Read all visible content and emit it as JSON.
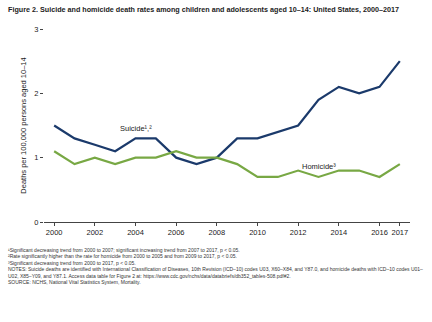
{
  "chart_data": {
    "type": "line",
    "title": "Figure 2. Suicide and homicide death rates among children and adolescents aged 10–14: United States, 2000–2017",
    "y_label": "Deaths per 100,000 persons aged 10–14",
    "x": [
      2000,
      2001,
      2002,
      2003,
      2004,
      2005,
      2006,
      2007,
      2008,
      2009,
      2010,
      2011,
      2012,
      2013,
      2014,
      2015,
      2016,
      2017
    ],
    "series": [
      {
        "name": "Suicide¹,²",
        "color": "#1b3a6b",
        "values": [
          1.5,
          1.3,
          1.2,
          1.1,
          1.3,
          1.3,
          1.0,
          0.9,
          1.0,
          1.3,
          1.3,
          1.4,
          1.5,
          1.9,
          2.1,
          2.0,
          2.1,
          2.5
        ]
      },
      {
        "name": "Homicide³",
        "color": "#78a844",
        "values": [
          1.1,
          0.9,
          1.0,
          0.9,
          1.0,
          1.0,
          1.1,
          1.0,
          1.0,
          0.9,
          0.7,
          0.7,
          0.8,
          0.7,
          0.8,
          0.8,
          0.7,
          0.9
        ]
      }
    ],
    "xlim": [
      1999.5,
      2017.5
    ],
    "xticks": [
      2000,
      2002,
      2004,
      2006,
      2008,
      2010,
      2012,
      2014,
      2016,
      2017
    ],
    "ylim": [
      0,
      3
    ],
    "yticks": [
      0,
      1,
      2,
      3
    ],
    "grid": false,
    "footnotes": [
      "¹Significant decreasing trend from 2000 to 2007; significant increasing trend from 2007 to 2017, p < 0.05.",
      "²Rate significantly higher than the rate for homicide from 2000 to 2005 and from 2009 to 2017, p < 0.05.",
      "³Significant decreasing trend from 2000 to 2017, p < 0.05.",
      "NOTES: Suicide deaths are identified with International Classification of Diseases, 10th Revision (ICD–10) codes U03, X60–X84, and Y87.0, and homicide deaths with ICD–10 codes U01–U02, X85–Y09, and Y87.1. Access data table for Figure 2 at: https://www.cdc.gov/nchs/data/databriefs/db352_tables-508.pdf#2.",
      "SOURCE: NCHS, National Vital Statistics System, Mortality."
    ]
  }
}
